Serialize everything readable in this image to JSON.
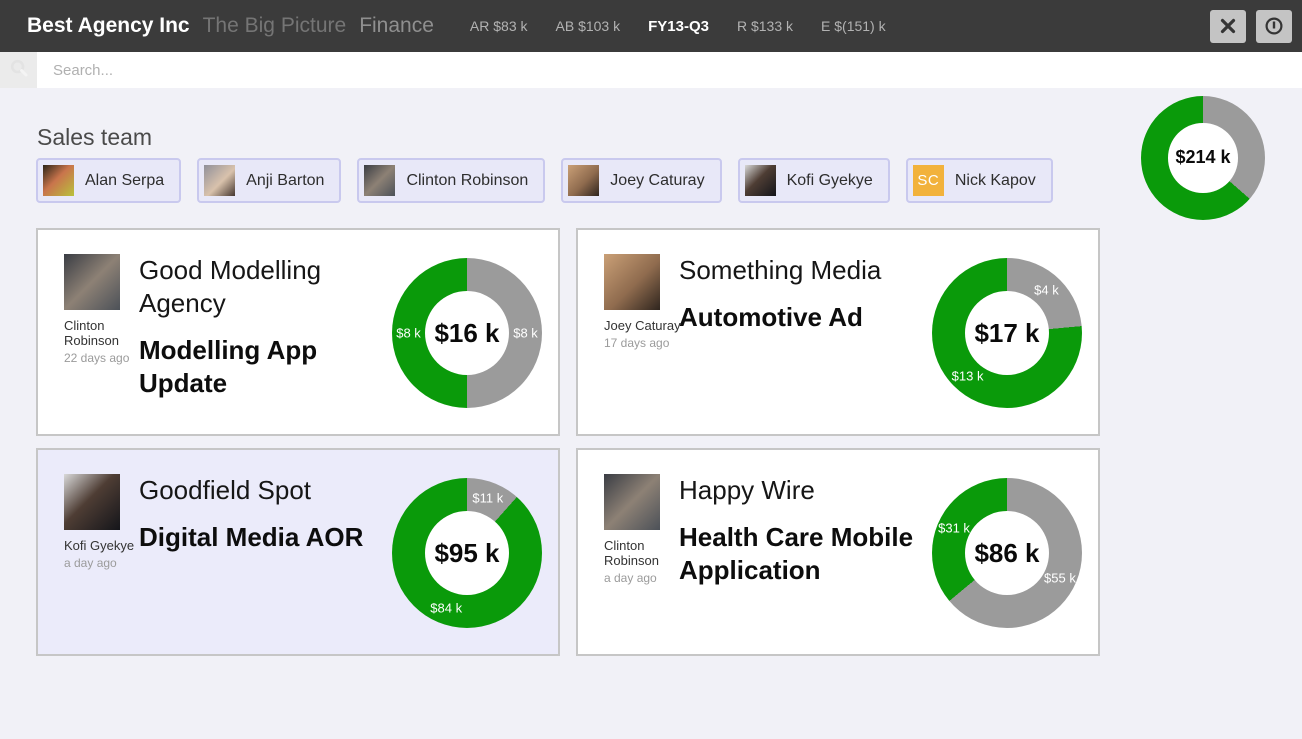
{
  "topbar": {
    "app_title": "Best Agency Inc",
    "subtitle": "The Big Picture",
    "section": "Finance",
    "metrics": [
      {
        "label": "AR $83 k"
      },
      {
        "label": "AB $103 k"
      },
      {
        "label": "FY13-Q3"
      },
      {
        "label": "R $133 k"
      },
      {
        "label": "E $(151) k"
      }
    ]
  },
  "search": {
    "placeholder": "Search..."
  },
  "sales_team": {
    "heading": "Sales team",
    "members": [
      {
        "name": "Alan Serpa",
        "avatar_style": "background:linear-gradient(135deg,#2b2417 0%,#c9744c 45%,#b9c23c 100%)"
      },
      {
        "name": "Anji Barton",
        "avatar_style": "background:linear-gradient(135deg,#90909a 0%,#d9c2ac 55%,#453730 100%)"
      },
      {
        "name": "Clinton Robinson",
        "avatar_style": "background:linear-gradient(135deg,#3a3d44 0%,#8d8175 50%,#4c5158 100%)"
      },
      {
        "name": "Joey Caturay",
        "avatar_style": "background:linear-gradient(135deg,#caa077 0%,#8f6b4e 55%,#2f251e 100%)"
      },
      {
        "name": "Kofi Gyekye",
        "avatar_style": "background:linear-gradient(135deg,#d9d9d9 0%,#4e3d34 45%,#14151a 100%)"
      },
      {
        "name": "Nick Kapov",
        "avatar_style": "background:#f2b23c",
        "avatar_initials": "SC"
      }
    ]
  },
  "totals": {
    "center_label": "$214 k",
    "donut": {
      "slices": [
        {
          "label": "",
          "value": 78,
          "color": "gray"
        },
        {
          "label": "",
          "value": 136,
          "color": "green"
        }
      ]
    }
  },
  "cards": [
    {
      "client": "Good Modelling Agency",
      "project": "Modelling App Update",
      "owner": "Clinton Robinson",
      "time_ago": "22 days ago",
      "selected": false,
      "center_label": "$16 k",
      "owner_avatar_style": "background:linear-gradient(135deg,#3a3d44 0%,#8d8175 50%,#4c5158 100%)",
      "donut": {
        "slices": [
          {
            "label": "$8 k",
            "value": 8,
            "color": "gray"
          },
          {
            "label": "$8 k",
            "value": 8,
            "color": "green"
          }
        ]
      }
    },
    {
      "client": "Something Media",
      "project": "Automotive Ad",
      "owner": "Joey Caturay",
      "time_ago": "17 days ago",
      "selected": false,
      "center_label": "$17 k",
      "owner_avatar_style": "background:linear-gradient(135deg,#caa077 0%,#8f6b4e 55%,#2f251e 100%)",
      "donut": {
        "slices": [
          {
            "label": "$4 k",
            "value": 4,
            "color": "gray"
          },
          {
            "label": "$13 k",
            "value": 13,
            "color": "green"
          }
        ]
      }
    },
    {
      "client": "Goodfield Spot",
      "project": "Digital Media AOR",
      "owner": "Kofi Gyekye",
      "time_ago": "a day ago",
      "selected": true,
      "center_label": "$95 k",
      "owner_avatar_style": "background:linear-gradient(135deg,#d9d9d9 0%,#4e3d34 45%,#14151a 100%)",
      "donut": {
        "slices": [
          {
            "label": "$11 k",
            "value": 11,
            "color": "gray"
          },
          {
            "label": "$84 k",
            "value": 84,
            "color": "green"
          }
        ]
      }
    },
    {
      "client": "Happy Wire",
      "project": "Health Care Mobile Application",
      "owner": "Clinton Robinson",
      "time_ago": "a day ago",
      "selected": false,
      "center_label": "$86 k",
      "owner_avatar_style": "background:linear-gradient(135deg,#3a3d44 0%,#8d8175 50%,#4c5158 100%)",
      "donut": {
        "slices": [
          {
            "label": "$55 k",
            "value": 55,
            "color": "gray"
          },
          {
            "label": "$31 k",
            "value": 31,
            "color": "green"
          }
        ]
      }
    }
  ],
  "colors": {
    "green": "#0a9a0a",
    "gray": "#9b9b9b"
  }
}
